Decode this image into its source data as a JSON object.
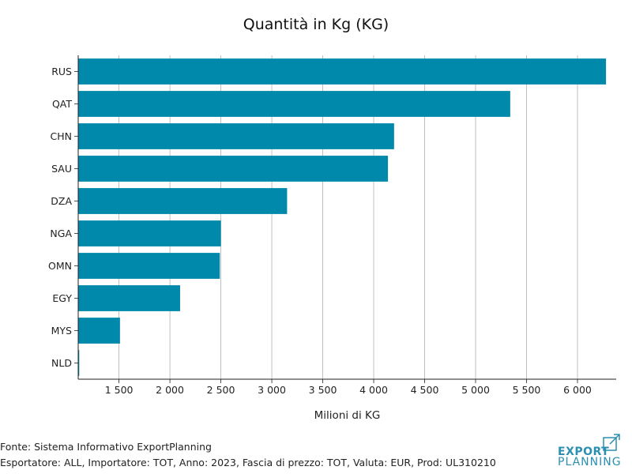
{
  "chart_data": {
    "type": "bar",
    "orientation": "horizontal",
    "title": "Quantità in Kg (KG)",
    "xlabel": "Milioni di KG",
    "ylabel": "",
    "categories": [
      "RUS",
      "QAT",
      "CHN",
      "SAU",
      "DZA",
      "NGA",
      "OMN",
      "EGY",
      "MYS",
      "NLD"
    ],
    "values": [
      6280,
      5340,
      4200,
      4140,
      3150,
      2500,
      2490,
      2100,
      1510,
      1110
    ],
    "xlim": [
      1100,
      6380
    ],
    "xticks": [
      1500,
      2000,
      2500,
      3000,
      3500,
      4000,
      4500,
      5000,
      5500,
      6000
    ],
    "xtick_labels": [
      "1 500",
      "2 000",
      "2 500",
      "3 000",
      "3 500",
      "4 000",
      "4 500",
      "5 000",
      "5 500",
      "6 000"
    ],
    "grid": "vertical",
    "bar_color": "#0089aa"
  },
  "footer": {
    "source": "Fonte: Sistema Informativo ExportPlanning",
    "details": "Esportatore: ALL, Importatore: TOT, Anno: 2023, Fascia di prezzo: TOT, Valuta: EUR, Prod: UL310210"
  },
  "logo": {
    "line1": "EXPORT",
    "line2": "PLANNING",
    "color": "#2a8fb0"
  }
}
